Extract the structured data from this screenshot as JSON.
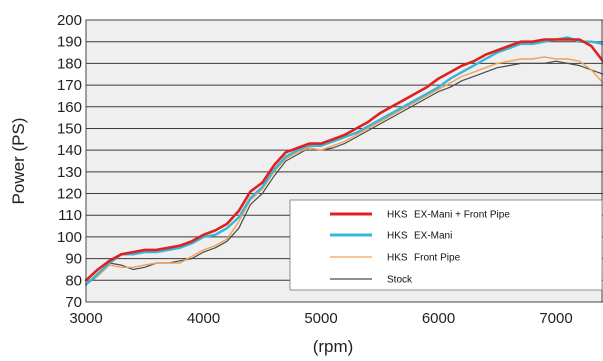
{
  "chart_data": {
    "type": "line",
    "title": "",
    "xlabel": "(rpm)",
    "ylabel": "Power (PS)",
    "xlim": [
      3000,
      7400
    ],
    "ylim": [
      70,
      200
    ],
    "x_ticks": [
      "3000",
      "4000",
      "5000",
      "6000",
      "7000"
    ],
    "y_ticks": [
      "70",
      "80",
      "90",
      "100",
      "110",
      "120",
      "130",
      "140",
      "150",
      "160",
      "170",
      "180",
      "190",
      "200"
    ],
    "grid": "horizontal",
    "plot_background": "#efefef",
    "legend_position": "bottom-right",
    "series": [
      {
        "name": "HKS EX-Mani + Front Pipe",
        "color": "#e0201f",
        "x": [
          3000,
          3100,
          3200,
          3300,
          3400,
          3500,
          3600,
          3700,
          3800,
          3900,
          4000,
          4100,
          4200,
          4300,
          4400,
          4500,
          4600,
          4700,
          4800,
          4900,
          5000,
          5100,
          5200,
          5300,
          5400,
          5500,
          5600,
          5700,
          5800,
          5900,
          6000,
          6100,
          6200,
          6300,
          6400,
          6500,
          6600,
          6700,
          6800,
          6900,
          7000,
          7100,
          7200,
          7300,
          7400
        ],
        "values": [
          80,
          85,
          89,
          92,
          93,
          94,
          94,
          95,
          96,
          98,
          101,
          103,
          106,
          112,
          121,
          125,
          133,
          139,
          141,
          143,
          143,
          145,
          147,
          150,
          153,
          157,
          160,
          163,
          166,
          169,
          173,
          176,
          179,
          181,
          184,
          186,
          188,
          190,
          190,
          191,
          191,
          191,
          191,
          188,
          181
        ]
      },
      {
        "name": "HKS EX-Mani",
        "color": "#38b6d8",
        "x": [
          3000,
          3100,
          3200,
          3300,
          3400,
          3500,
          3600,
          3700,
          3800,
          3900,
          4000,
          4100,
          4200,
          4300,
          4400,
          4500,
          4600,
          4700,
          4800,
          4900,
          5000,
          5100,
          5200,
          5300,
          5400,
          5500,
          5600,
          5700,
          5800,
          5900,
          6000,
          6100,
          6200,
          6300,
          6400,
          6500,
          6600,
          6700,
          6800,
          6900,
          7000,
          7100,
          7200,
          7300,
          7400
        ],
        "values": [
          78,
          83,
          88,
          92,
          92,
          93,
          93,
          94,
          95,
          97,
          100,
          101,
          104,
          109,
          118,
          123,
          131,
          137,
          140,
          142,
          142,
          144,
          146,
          148,
          151,
          154,
          157,
          160,
          163,
          166,
          169,
          173,
          176,
          179,
          182,
          185,
          187,
          189,
          189,
          190,
          191,
          192,
          190,
          190,
          189
        ]
      },
      {
        "name": "HKS Front Pipe",
        "color": "#f0a258",
        "x": [
          3000,
          3100,
          3200,
          3300,
          3400,
          3500,
          3600,
          3700,
          3800,
          3900,
          4000,
          4100,
          4200,
          4300,
          4400,
          4500,
          4600,
          4700,
          4800,
          4900,
          5000,
          5100,
          5200,
          5300,
          5400,
          5500,
          5600,
          5700,
          5800,
          5900,
          6000,
          6100,
          6200,
          6300,
          6400,
          6500,
          6600,
          6700,
          6800,
          6900,
          7000,
          7100,
          7200,
          7300,
          7400
        ],
        "values": [
          79,
          82,
          87,
          86,
          86,
          87,
          88,
          88,
          88,
          91,
          94,
          96,
          99,
          107,
          117,
          122,
          130,
          136,
          139,
          141,
          140,
          142,
          144,
          147,
          150,
          153,
          156,
          159,
          162,
          165,
          168,
          171,
          174,
          176,
          178,
          180,
          181,
          182,
          182,
          183,
          182,
          182,
          181,
          177,
          171
        ]
      },
      {
        "name": "Stock",
        "color": "#4a4a4a",
        "x": [
          3000,
          3100,
          3200,
          3300,
          3400,
          3500,
          3600,
          3700,
          3800,
          3900,
          4000,
          4100,
          4200,
          4300,
          4400,
          4500,
          4600,
          4700,
          4800,
          4900,
          5000,
          5100,
          5200,
          5300,
          5400,
          5500,
          5600,
          5700,
          5800,
          5900,
          6000,
          6100,
          6200,
          6300,
          6400,
          6500,
          6600,
          6700,
          6800,
          6900,
          7000,
          7100,
          7200,
          7300,
          7400
        ],
        "values": [
          78,
          82,
          88,
          87,
          85,
          86,
          88,
          88,
          89,
          90,
          93,
          95,
          98,
          104,
          115,
          120,
          128,
          135,
          138,
          141,
          140,
          141,
          143,
          146,
          149,
          152,
          155,
          158,
          161,
          164,
          167,
          169,
          172,
          174,
          176,
          178,
          179,
          180,
          180,
          180,
          181,
          180,
          179,
          177,
          175
        ]
      }
    ],
    "legend_labels": [
      {
        "brand": "HKS",
        "text": "EX-Mani + Front Pipe"
      },
      {
        "brand": "HKS",
        "text": "EX-Mani"
      },
      {
        "brand": "HKS",
        "text": "Front Pipe"
      },
      {
        "brand": "",
        "text": "Stock"
      }
    ]
  }
}
